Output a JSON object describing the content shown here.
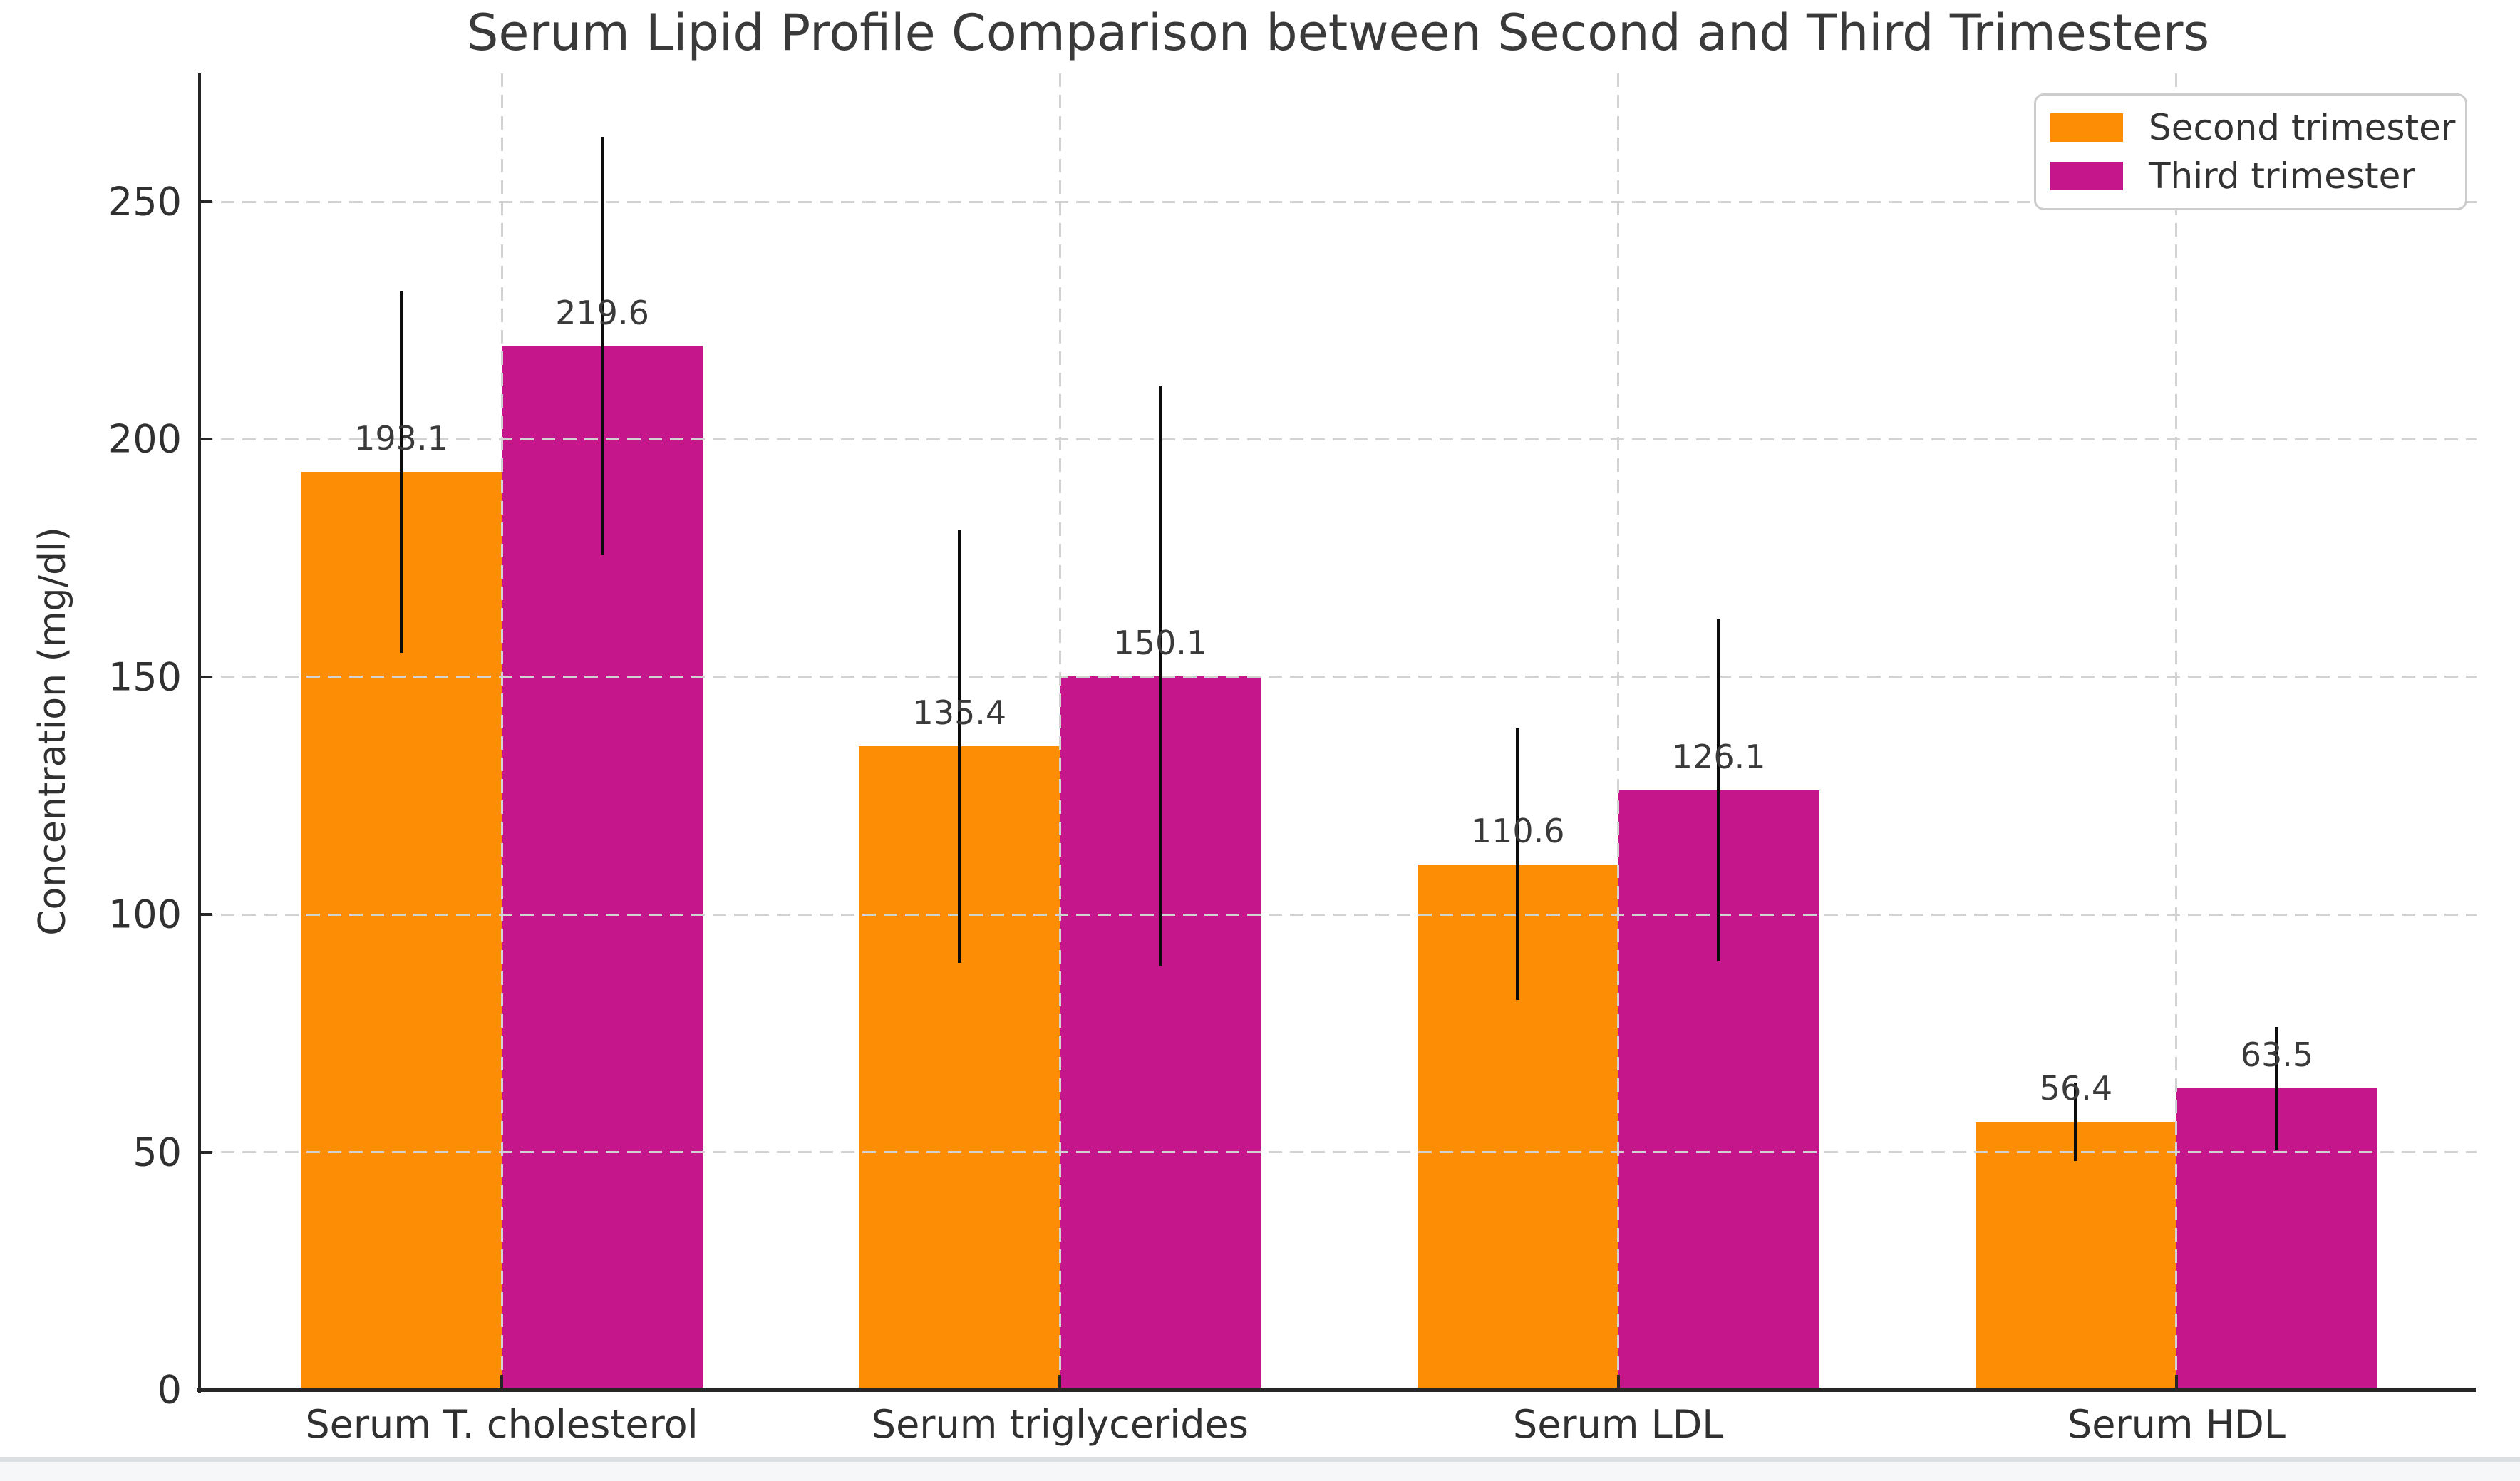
{
  "chart_data": {
    "type": "bar",
    "title": "Serum Lipid Profile Comparison between Second and Third Trimesters",
    "xlabel": "",
    "ylabel": "Concentration (mg/dl)",
    "categories": [
      "Serum T. cholesterol",
      "Serum triglycerides",
      "Serum LDL",
      "Serum HDL"
    ],
    "series": [
      {
        "name": "Second trimester",
        "color": "#FC8D05",
        "values": [
          193.1,
          135.4,
          110.6,
          56.4
        ],
        "errors": [
          38.0,
          45.5,
          28.5,
          8.2
        ]
      },
      {
        "name": "Third trimester",
        "color": "#C5168C",
        "values": [
          219.6,
          150.1,
          126.1,
          63.5
        ],
        "errors": [
          44.0,
          61.0,
          36.0,
          12.9
        ]
      }
    ],
    "value_labels": [
      "193.1",
      "135.4",
      "110.6",
      "56.4",
      "219.6",
      "150.1",
      "126.1",
      "63.5"
    ],
    "yticks": [
      0,
      50,
      100,
      150,
      200,
      250
    ],
    "ylim": [
      0,
      277
    ],
    "grid": "dashed, drawn above bars",
    "legend_position": "upper right",
    "error_bar_color": "#0c0c0c"
  },
  "style_colors": {
    "background": "#ffffff",
    "axis_spine": "#262626",
    "gridline": "#d2d2d2",
    "text": "#303030",
    "legend_border": "#cccccc",
    "bottom_divider": "#dcdfe2"
  }
}
